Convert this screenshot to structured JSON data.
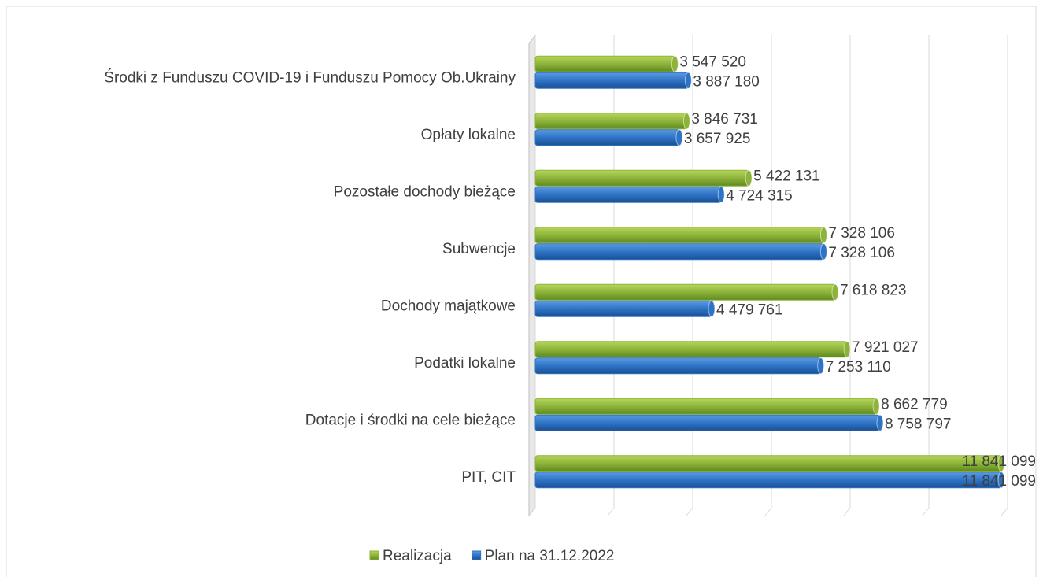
{
  "chart_data": {
    "type": "bar",
    "orientation": "horizontal",
    "categories": [
      "Środki z Funduszu COVID-19 i Funduszu Pomocy Ob.Ukrainy",
      "Opłaty lokalne",
      "Pozostałe dochody bieżące",
      "Subwencje",
      "Dochody majątkowe",
      "Podatki lokalne",
      "Dotacje i środki na cele bieżące",
      "PIT, CIT"
    ],
    "series": [
      {
        "name": "Realizacja",
        "color": "#8db33a",
        "values": [
          3547520,
          3846731,
          5422131,
          7328106,
          7618823,
          7921027,
          8662779,
          11841099
        ],
        "value_labels": [
          "3 547 520",
          "3 846 731",
          "5 422 131",
          "7 328 106",
          "7 618 823",
          "7 921 027",
          "8 662 779",
          "11 841 099"
        ]
      },
      {
        "name": "Plan na 31.12.2022",
        "color": "#2e74c6",
        "values": [
          3887180,
          3657925,
          4724315,
          7328106,
          4479761,
          7253110,
          8758797,
          11841099
        ],
        "value_labels": [
          "3 887 180",
          "3 657 925",
          "4 724 315",
          "7 328 106",
          "4 479 761",
          "7 253 110",
          "8 758 797",
          "11 841 099"
        ]
      }
    ],
    "xlim": [
      0,
      12000000
    ],
    "xticks": [
      0,
      2000000,
      4000000,
      6000000,
      8000000,
      10000000,
      12000000
    ],
    "grid": true,
    "legend": "bottom"
  }
}
